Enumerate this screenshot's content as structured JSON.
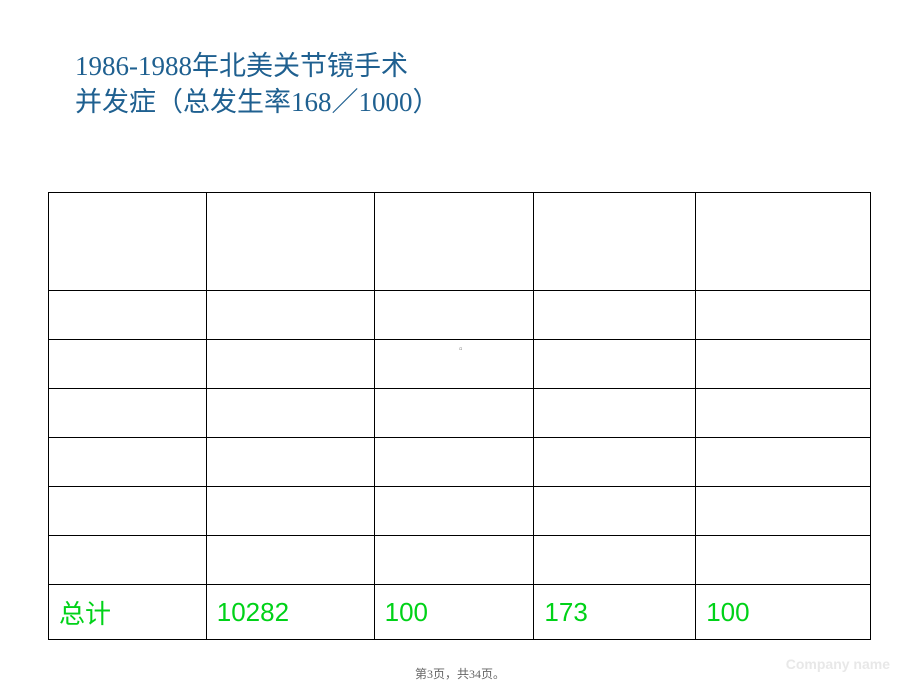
{
  "heading": {
    "line1": "1986-1988年北美关节镜手术",
    "line2": "并发症（总发生率168／1000）",
    "color": "#1f6090",
    "fontsize": 27
  },
  "table": {
    "columns": 5,
    "header_row": [
      "",
      "",
      "",
      "",
      ""
    ],
    "body_rows": [
      [
        "",
        "",
        "",
        "",
        ""
      ],
      [
        "",
        "",
        "",
        "",
        ""
      ],
      [
        "",
        "",
        "",
        "",
        ""
      ],
      [
        "",
        "",
        "",
        "",
        ""
      ],
      [
        "",
        "",
        "",
        "",
        ""
      ],
      [
        "",
        "",
        "",
        "",
        ""
      ]
    ],
    "total_row": {
      "label": "总计",
      "c2": "10282",
      "c3": "100",
      "c4": "173",
      "c5": "100",
      "color": "#00d218",
      "fontsize": 26
    },
    "border_color": "#000000",
    "background_color": "#ffffff"
  },
  "center_mark": "▫",
  "footer": {
    "page": "第3页，共34页。",
    "company": "Company name"
  }
}
